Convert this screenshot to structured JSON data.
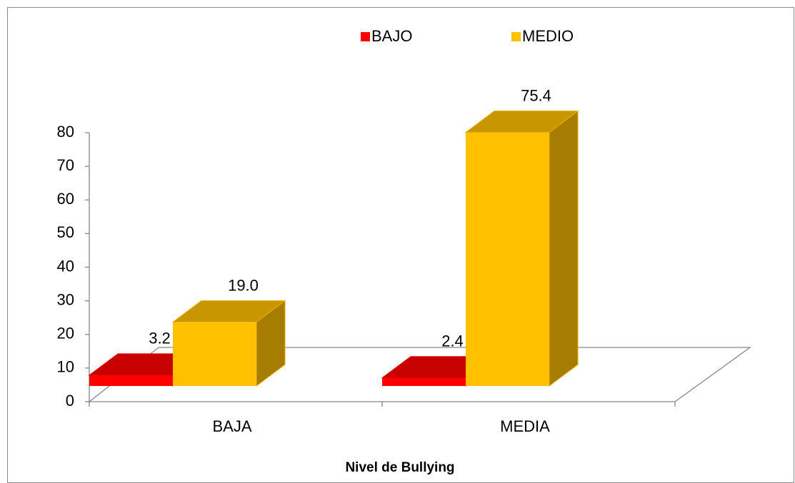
{
  "chart_data": {
    "type": "bar3d",
    "categories": [
      "BAJA",
      "MEDIA"
    ],
    "series": [
      {
        "name": "BAJO",
        "color": "#ff0000",
        "values": [
          3.2,
          2.4
        ],
        "value_labels": [
          "3.2",
          "2.4"
        ]
      },
      {
        "name": "MEDIO",
        "color": "#ffc000",
        "values": [
          19.0,
          75.4
        ],
        "value_labels": [
          "19.0",
          "75.4"
        ]
      }
    ],
    "xlabel": "Nivel de Bullying",
    "ylim": [
      0,
      80
    ],
    "yticks": [
      0,
      10,
      20,
      30,
      40,
      50,
      60,
      70,
      80
    ],
    "legend": "top"
  }
}
